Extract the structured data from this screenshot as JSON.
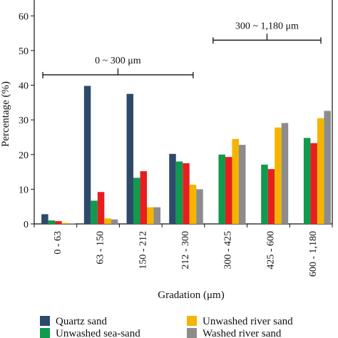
{
  "chart_data": {
    "type": "bar",
    "title": "",
    "xlabel": "Gradation (μm)",
    "ylabel": "Percentage (%)",
    "ylim": [
      0,
      80
    ],
    "yticks": [
      0,
      10,
      20,
      30,
      40,
      50,
      60,
      70,
      80
    ],
    "grid": false,
    "legend_position": "bottom",
    "categories": [
      "0 - 63",
      "63 - 150",
      "150 - 212",
      "212 - 300",
      "300 - 425",
      "425 - 600",
      "600 - 1,180"
    ],
    "series": [
      {
        "name": "Quartz sand",
        "color": "#2e4a6b",
        "values": [
          2.8,
          39.8,
          37.5,
          20.2,
          null,
          null,
          null
        ]
      },
      {
        "name": "Unwashed sea-sand",
        "color": "#0f9a4d",
        "values": [
          1.0,
          6.7,
          13.3,
          18.0,
          20.0,
          17.1,
          24.8
        ]
      },
      {
        "name": "Unwashed river sand",
        "color": "#e61e1e",
        "values": [
          0.8,
          9.2,
          15.2,
          17.5,
          19.3,
          15.8,
          23.3
        ]
      },
      {
        "name": "Unwashed river sand",
        "color": "#f5b400",
        "values": [
          0.3,
          1.6,
          4.8,
          11.3,
          24.5,
          27.8,
          30.5
        ]
      },
      {
        "name": "Washed river sand",
        "color": "#8c8c8c",
        "values": [
          0.1,
          1.3,
          4.8,
          10.0,
          22.8,
          29.1,
          32.6
        ]
      }
    ],
    "annotations": [
      {
        "label": "0 ~ 300 μm",
        "from_category": 0,
        "to_category": 3,
        "y": 43
      },
      {
        "label": "300 ~ 1,180 μm",
        "from_category": 4,
        "to_category": 6,
        "y": 53
      }
    ]
  }
}
